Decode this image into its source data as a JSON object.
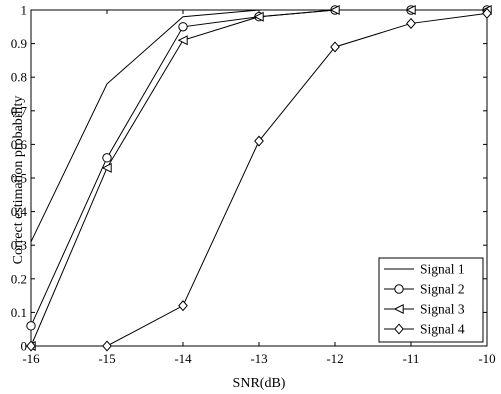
{
  "chart_data": {
    "type": "line",
    "xlabel": "SNR(dB)",
    "ylabel": "Correct estimation probability",
    "xlim": [
      -16,
      -10
    ],
    "ylim": [
      0,
      1
    ],
    "x_ticks": [
      -16,
      -15,
      -14,
      -13,
      -12,
      -11,
      -10
    ],
    "y_ticks": [
      0,
      0.1,
      0.2,
      0.3,
      0.4,
      0.5,
      0.6,
      0.7,
      0.8,
      0.9,
      1
    ],
    "x_tick_labels": [
      "-16",
      "-15",
      "-14",
      "-13",
      "-12",
      "-11",
      "-10"
    ],
    "y_tick_labels": [
      "0",
      "0.1",
      "0.2",
      "0.3",
      "0.4",
      "0.5",
      "0.6",
      "0.7",
      "0.8",
      "0.9",
      "1"
    ],
    "grid": false,
    "legend_position": "bottom-right",
    "x": [
      -16,
      -15,
      -14,
      -13,
      -12,
      -11,
      -10
    ],
    "series": [
      {
        "name": "Signal 1",
        "marker": "none",
        "values": [
          0.31,
          0.78,
          0.98,
          1.0,
          1.0,
          1.0,
          1.0
        ]
      },
      {
        "name": "Signal 2",
        "marker": "circle",
        "values": [
          0.06,
          0.56,
          0.95,
          0.98,
          1.0,
          1.0,
          1.0
        ]
      },
      {
        "name": "Signal 3",
        "marker": "triangle-left",
        "values": [
          0.0,
          0.53,
          0.91,
          0.98,
          1.0,
          1.0,
          1.0
        ]
      },
      {
        "name": "Signal 4",
        "marker": "diamond",
        "values": [
          0.0,
          0.0,
          0.12,
          0.61,
          0.89,
          0.96,
          0.99
        ]
      }
    ],
    "colors": {
      "line": "#000000",
      "background": "#ffffff"
    }
  }
}
